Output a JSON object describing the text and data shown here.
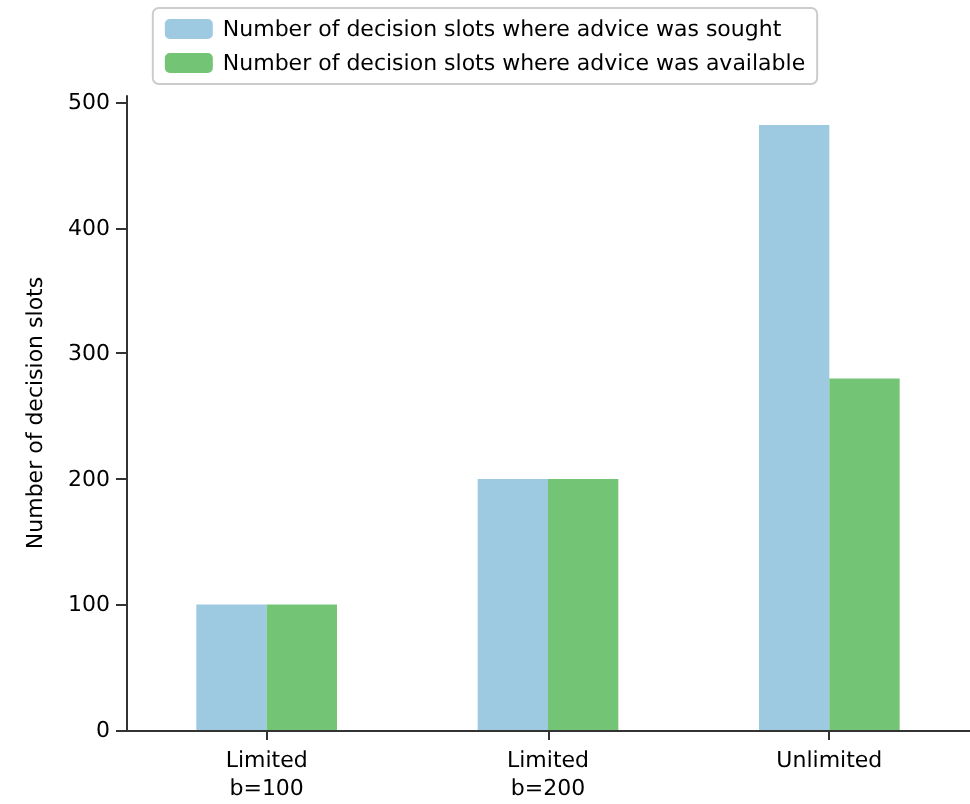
{
  "chart_data": {
    "type": "bar",
    "ylabel": "Number of decision slots",
    "categories": [
      "Limited\nb=100",
      "Limited\nb=200",
      "Unlimited"
    ],
    "series": [
      {
        "name": "Number of decision slots where advice was sought",
        "color": "#9ecae1",
        "values": [
          100,
          200,
          482
        ]
      },
      {
        "name": "Number of decision slots where advice was available",
        "color": "#74c476",
        "values": [
          100,
          200,
          280
        ]
      }
    ],
    "ylim": [
      0,
      505
    ],
    "yticks": [
      0,
      100,
      200,
      300,
      400,
      500
    ],
    "grid": false,
    "legend": "top"
  }
}
